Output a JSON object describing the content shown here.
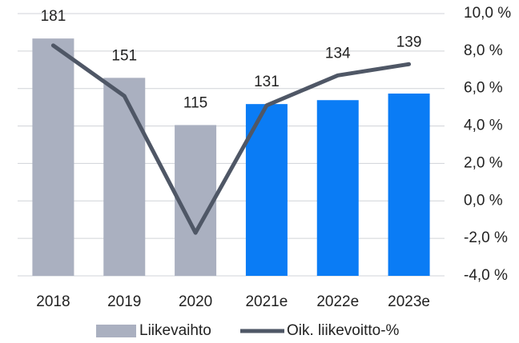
{
  "chart_data": {
    "type": "bar-line",
    "categories": [
      "2018",
      "2019",
      "2020",
      "2021e",
      "2022e",
      "2023e"
    ],
    "series": [
      {
        "name": "Liikevaihto",
        "type": "bar",
        "color": "#aab0c0",
        "colors": [
          "#aab0c0",
          "#aab0c0",
          "#aab0c0",
          "#0a7cf5",
          "#0a7cf5",
          "#0a7cf5"
        ],
        "values": [
          181,
          151,
          115,
          131,
          134,
          139
        ]
      },
      {
        "name": "Oik. liikevoitto-%",
        "type": "line",
        "axis": "y2",
        "color": "#4f5766",
        "values": [
          8.3,
          5.6,
          -1.7,
          5.1,
          6.7,
          7.3
        ]
      }
    ],
    "ylim": [
      0,
      200
    ],
    "y2lim": [
      -4,
      10
    ],
    "y2ticks": [
      {
        "value": -4,
        "label": "-4,0 %"
      },
      {
        "value": -2,
        "label": "-2,0 %"
      },
      {
        "value": 0,
        "label": "0,0 %"
      },
      {
        "value": 2,
        "label": "2,0 %"
      },
      {
        "value": 4,
        "label": "4,0 %"
      },
      {
        "value": 6,
        "label": "6,0 %"
      },
      {
        "value": 8,
        "label": "8,0 %"
      },
      {
        "value": 10,
        "label": "10,0 %"
      }
    ],
    "grid": true,
    "legend": "bottom"
  }
}
